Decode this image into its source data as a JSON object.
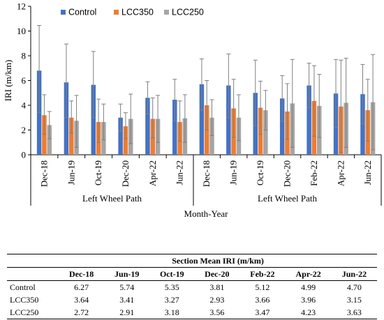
{
  "chart_data": {
    "type": "bar",
    "ylabel": "IRI (m/km)",
    "xlabel": "Month-Year",
    "ylim": [
      0,
      12
    ],
    "yticks": [
      0,
      2,
      4,
      6,
      8,
      10,
      12
    ],
    "legend_placement": "top-left",
    "grid": false,
    "groups": [
      {
        "label": "Left Wheel Path",
        "categories": [
          "Dec-18",
          "Jun-19",
          "Oct-19",
          "Dec-20",
          "Apr-22",
          "Jun-22"
        ],
        "series": [
          {
            "name": "Control",
            "values": [
              6.8,
              5.85,
              5.65,
              3.0,
              4.6,
              4.45
            ],
            "error_upper": [
              10.45,
              8.95,
              8.35,
              4.1,
              5.9,
              6.1
            ],
            "error_lower": [
              3.4,
              3.0,
              3.0,
              1.9,
              3.3,
              2.75
            ]
          },
          {
            "name": "LCC350",
            "values": [
              3.2,
              3.0,
              2.65,
              2.3,
              2.9,
              2.65
            ],
            "error_upper": [
              4.85,
              4.35,
              4.5,
              3.4,
              4.6,
              4.35
            ],
            "error_lower": [
              1.65,
              1.75,
              1.0,
              1.3,
              1.35,
              1.1
            ]
          },
          {
            "name": "LCC250",
            "values": [
              2.4,
              2.75,
              2.65,
              2.9,
              2.9,
              2.95
            ],
            "error_upper": [
              3.5,
              4.8,
              4.1,
              4.9,
              4.8,
              4.85
            ],
            "error_lower": [
              1.3,
              0.6,
              1.2,
              0.9,
              1.0,
              1.0
            ]
          }
        ]
      },
      {
        "label": "Left Wheel Path",
        "categories": [
          "Dec-18",
          "Jun-19",
          "Oct-19",
          "Dec-20",
          "Feb-22",
          "Apr-22",
          "Jun-22"
        ],
        "series": [
          {
            "name": "Control",
            "values": [
              5.7,
              5.6,
              5.0,
              4.55,
              5.6,
              4.95,
              4.9
            ],
            "error_upper": [
              7.75,
              8.15,
              7.65,
              6.4,
              7.4,
              7.7,
              7.3
            ],
            "error_lower": [
              3.6,
              3.0,
              2.35,
              2.7,
              3.8,
              2.2,
              2.5
            ]
          },
          {
            "name": "LCC350",
            "values": [
              4.0,
              3.75,
              3.8,
              3.5,
              4.35,
              3.9,
              3.6
            ],
            "error_upper": [
              6.0,
              6.1,
              5.95,
              5.75,
              7.2,
              7.65,
              6.1
            ],
            "error_lower": [
              2.0,
              1.4,
              1.65,
              1.25,
              1.5,
              0.2,
              1.1
            ]
          },
          {
            "name": "LCC250",
            "values": [
              3.0,
              3.0,
              3.6,
              4.15,
              3.95,
              4.2,
              4.25
            ],
            "error_upper": [
              4.45,
              4.85,
              5.2,
              7.7,
              6.5,
              7.8,
              8.1
            ],
            "error_lower": [
              1.55,
              1.15,
              2.0,
              0.6,
              1.4,
              0.6,
              0.4
            ]
          }
        ]
      }
    ]
  },
  "colors": {
    "Control": "#4472c4",
    "LCC350": "#ed7d31",
    "LCC250": "#a5a5a5",
    "error_bar": "#7f7f7f"
  },
  "table": {
    "title": "Section Mean IRI (m/km)",
    "columns": [
      "Dec-18",
      "Jun-19",
      "Oct-19",
      "Dec-20",
      "Feb-22",
      "Apr-22",
      "Jun-22"
    ],
    "rows": [
      {
        "label": "Control",
        "values": [
          "6.27",
          "5.74",
          "5.35",
          "3.81",
          "5.12",
          "4.99",
          "4.70"
        ]
      },
      {
        "label": "LCC350",
        "values": [
          "3.64",
          "3.41",
          "3.27",
          "2.93",
          "3.66",
          "3.96",
          "3.15"
        ]
      },
      {
        "label": "LCC250",
        "values": [
          "2.72",
          "2.91",
          "3.18",
          "3.56",
          "3.47",
          "4.23",
          "3.63"
        ]
      }
    ]
  }
}
